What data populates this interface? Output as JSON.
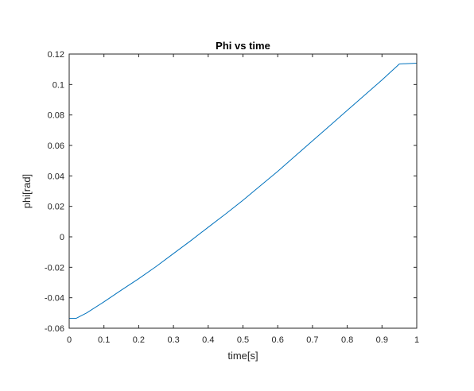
{
  "chart_data": {
    "type": "line",
    "title": "Phi vs time",
    "xlabel": "time[s]",
    "ylabel": "phi[rad]",
    "xlim": [
      0,
      1
    ],
    "ylim": [
      -0.06,
      0.12
    ],
    "xticks": [
      0,
      0.1,
      0.2,
      0.3,
      0.4,
      0.5,
      0.6,
      0.7,
      0.8,
      0.9,
      1
    ],
    "xtick_labels": [
      "0",
      "0.1",
      "0.2",
      "0.3",
      "0.4",
      "0.5",
      "0.6",
      "0.7",
      "0.8",
      "0.9",
      "1"
    ],
    "yticks": [
      -0.06,
      -0.04,
      -0.02,
      0,
      0.02,
      0.04,
      0.06,
      0.08,
      0.1,
      0.12
    ],
    "ytick_labels": [
      "-0.06",
      "-0.04",
      "-0.02",
      "0",
      "0.02",
      "0.04",
      "0.06",
      "0.08",
      "0.1",
      "0.12"
    ],
    "grid": false,
    "box": true,
    "color": "#0072BD",
    "series": [
      {
        "x": [
          0,
          0.02,
          0.05,
          0.1,
          0.15,
          0.2,
          0.25,
          0.3,
          0.35,
          0.4,
          0.45,
          0.5,
          0.55,
          0.6,
          0.65,
          0.7,
          0.75,
          0.8,
          0.85,
          0.9,
          0.95,
          1
        ],
        "values": [
          -0.0535,
          -0.0535,
          -0.05,
          -0.0427,
          -0.035,
          -0.0275,
          -0.0195,
          -0.011,
          -0.0025,
          0.0063,
          0.015,
          0.024,
          0.0335,
          0.043,
          0.053,
          0.063,
          0.073,
          0.083,
          0.093,
          0.103,
          0.1135,
          0.114
        ]
      }
    ]
  }
}
